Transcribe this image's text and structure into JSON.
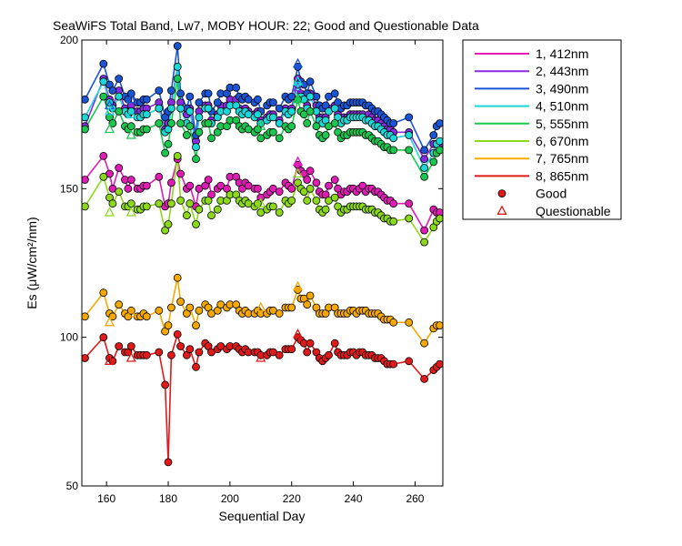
{
  "chart_data": {
    "type": "line",
    "title": "SeaWiFS Total Band,  Lw7, MOBY HOUR: 22;  Good and Questionable Data",
    "xlabel": "Sequential Day",
    "ylabel": "Es (μW/cm²/nm)",
    "xlim": [
      152,
      269
    ],
    "ylim": [
      50,
      200
    ],
    "xticks": [
      160,
      180,
      200,
      220,
      240,
      260
    ],
    "yticks": [
      50,
      100,
      150,
      200
    ],
    "grid": false,
    "legend_position": "outside-right",
    "x": [
      153,
      159,
      161,
      162,
      164,
      166,
      167,
      168,
      170,
      171,
      172,
      173,
      177,
      179,
      180,
      181,
      183,
      184,
      186,
      187,
      189,
      190,
      192,
      193,
      194,
      196,
      197,
      199,
      200,
      202,
      203,
      204,
      205,
      206,
      208,
      209,
      210,
      212,
      213,
      214,
      216,
      218,
      219,
      220,
      222,
      223,
      224,
      225,
      226,
      228,
      229,
      230,
      231,
      232,
      234,
      235,
      236,
      237,
      238,
      239,
      240,
      241,
      242,
      243,
      244,
      245,
      246,
      247,
      248,
      249,
      250,
      251,
      252,
      253,
      258,
      263,
      266,
      267,
      268
    ],
    "series": [
      {
        "name": "1, 412nm",
        "color": "#e01cb5",
        "values": [
          153,
          161,
          155,
          150,
          157,
          153,
          150,
          153,
          150,
          150,
          151,
          151,
          154,
          144,
          145,
          152,
          160,
          155,
          150,
          151,
          144,
          150,
          151,
          153,
          148,
          150,
          151,
          150,
          154,
          154,
          152,
          150,
          152,
          151,
          150,
          150,
          147,
          148,
          149,
          150,
          149,
          152,
          151,
          150,
          158,
          156,
          155,
          153,
          156,
          152,
          149,
          148,
          148,
          151,
          153,
          150,
          148,
          149,
          149,
          150,
          150,
          149,
          150,
          151,
          149,
          150,
          150,
          149,
          149,
          148,
          147,
          146,
          146,
          145,
          145,
          136,
          143,
          142,
          142
        ]
      },
      {
        "name": "2, 443nm",
        "color": "#8a2be2",
        "values": [
          171,
          187,
          180,
          178,
          183,
          177,
          176,
          178,
          176,
          176,
          177,
          177,
          179,
          170,
          172,
          179,
          191,
          179,
          175,
          177,
          166,
          176,
          178,
          178,
          173,
          175,
          178,
          178,
          180,
          180,
          177,
          176,
          177,
          176,
          175,
          176,
          173,
          174,
          175,
          175,
          173,
          177,
          176,
          177,
          187,
          182,
          181,
          178,
          182,
          178,
          174,
          174,
          174,
          177,
          178,
          175,
          173,
          174,
          174,
          175,
          175,
          175,
          175,
          175,
          174,
          175,
          174,
          173,
          173,
          172,
          171,
          170,
          170,
          169,
          169,
          160,
          165,
          165,
          165
        ]
      },
      {
        "name": "3, 490nm",
        "color": "#1a55d6",
        "values": [
          180,
          192,
          185,
          183,
          187,
          181,
          180,
          182,
          179,
          179,
          180,
          180,
          183,
          174,
          176,
          183,
          198,
          182,
          177,
          181,
          168,
          179,
          182,
          182,
          176,
          179,
          182,
          182,
          184,
          184,
          181,
          180,
          181,
          180,
          179,
          180,
          176,
          178,
          179,
          179,
          177,
          181,
          180,
          181,
          191,
          186,
          185,
          182,
          186,
          181,
          178,
          177,
          178,
          181,
          182,
          179,
          177,
          178,
          178,
          179,
          179,
          179,
          179,
          179,
          178,
          178,
          177,
          176,
          176,
          175,
          174,
          173,
          172,
          172,
          174,
          163,
          168,
          171,
          172
        ]
      },
      {
        "name": "4, 510nm",
        "color": "#1ad8d8",
        "values": [
          174,
          186,
          179,
          177,
          181,
          176,
          175,
          176,
          174,
          174,
          175,
          175,
          177,
          169,
          170,
          177,
          191,
          177,
          172,
          176,
          164,
          174,
          177,
          177,
          172,
          174,
          176,
          176,
          178,
          178,
          176,
          175,
          176,
          175,
          174,
          175,
          172,
          173,
          174,
          174,
          172,
          176,
          175,
          176,
          185,
          181,
          180,
          177,
          181,
          176,
          173,
          172,
          173,
          176,
          177,
          174,
          172,
          173,
          173,
          174,
          174,
          174,
          174,
          174,
          173,
          173,
          172,
          171,
          171,
          170,
          169,
          168,
          168,
          167,
          168,
          157,
          162,
          165,
          166
        ]
      },
      {
        "name": "5, 555nm",
        "color": "#1ac850",
        "values": [
          170,
          181,
          174,
          172,
          176,
          171,
          170,
          171,
          169,
          169,
          170,
          170,
          172,
          162,
          165,
          172,
          187,
          172,
          168,
          171,
          160,
          169,
          172,
          172,
          167,
          169,
          171,
          171,
          173,
          173,
          171,
          170,
          171,
          170,
          169,
          170,
          167,
          168,
          169,
          169,
          167,
          171,
          170,
          171,
          180,
          176,
          175,
          172,
          176,
          171,
          168,
          167,
          168,
          171,
          172,
          169,
          167,
          168,
          168,
          169,
          169,
          169,
          169,
          169,
          168,
          168,
          167,
          166,
          166,
          165,
          164,
          164,
          163,
          163,
          163,
          154,
          159,
          162,
          163
        ]
      },
      {
        "name": "6, 670nm",
        "color": "#8cd81a",
        "values": [
          144,
          154,
          147,
          145,
          149,
          144,
          144,
          145,
          143,
          143,
          144,
          144,
          145,
          136,
          138,
          145,
          161,
          146,
          141,
          145,
          138,
          143,
          146,
          146,
          141,
          143,
          146,
          146,
          148,
          148,
          146,
          145,
          146,
          145,
          144,
          145,
          142,
          143,
          144,
          144,
          142,
          146,
          145,
          146,
          152,
          150,
          149,
          146,
          150,
          146,
          143,
          142,
          143,
          146,
          147,
          144,
          142,
          143,
          143,
          144,
          144,
          144,
          144,
          144,
          143,
          143,
          143,
          142,
          142,
          141,
          140,
          140,
          139,
          139,
          140,
          132,
          137,
          139,
          140
        ]
      },
      {
        "name": "7, 765nm",
        "color": "#f5a800",
        "values": [
          107,
          115,
          108,
          107,
          111,
          108,
          107,
          109,
          107,
          107,
          108,
          107,
          109,
          102,
          104,
          110,
          120,
          112,
          108,
          110,
          104,
          109,
          111,
          110,
          108,
          109,
          111,
          110,
          111,
          111,
          109,
          108,
          109,
          108,
          108,
          109,
          108,
          108,
          109,
          109,
          108,
          110,
          110,
          110,
          116,
          113,
          113,
          111,
          114,
          110,
          108,
          108,
          108,
          110,
          110,
          108,
          108,
          108,
          108,
          109,
          109,
          108,
          109,
          109,
          109,
          108,
          108,
          108,
          108,
          107,
          106,
          106,
          106,
          105,
          105,
          98,
          103,
          104,
          104
        ]
      },
      {
        "name": "8, 865nm",
        "color": "#e01a1a",
        "values": [
          93,
          100,
          93,
          92,
          97,
          95,
          95,
          97,
          94,
          94,
          94,
          94,
          95,
          84,
          58,
          94,
          101,
          97,
          94,
          96,
          90,
          95,
          98,
          97,
          95,
          96,
          97,
          96,
          97,
          97,
          96,
          95,
          96,
          95,
          95,
          95,
          94,
          94,
          95,
          95,
          94,
          96,
          96,
          96,
          100,
          99,
          98,
          95,
          98,
          95,
          93,
          92,
          93,
          94,
          98,
          95,
          94,
          94,
          94,
          95,
          95,
          94,
          95,
          95,
          94,
          94,
          94,
          93,
          93,
          93,
          92,
          91,
          91,
          91,
          92,
          86,
          89,
          90,
          91
        ]
      }
    ],
    "questionable_points": [
      {
        "x": 161,
        "values": [
          null,
          null,
          178,
          176,
          170,
          142,
          105,
          92
        ]
      },
      {
        "x": 168,
        "values": [
          null,
          null,
          180,
          175,
          168,
          142,
          108,
          93
        ]
      },
      {
        "x": 210,
        "values": [
          null,
          null,
          null,
          null,
          171,
          145,
          110,
          93
        ]
      },
      {
        "x": 222,
        "values": [
          159,
          184,
          192,
          186,
          180,
          155,
          117,
          101
        ]
      }
    ],
    "legend_entries": [
      "1, 412nm",
      "2, 443nm",
      "3, 490nm",
      "4, 510nm",
      "5, 555nm",
      "6, 670nm",
      "7, 765nm",
      "8, 865nm",
      "Good",
      "Questionable"
    ],
    "good_marker_color": "#e01a1a",
    "questionable_marker_color": "#e01a1a"
  }
}
